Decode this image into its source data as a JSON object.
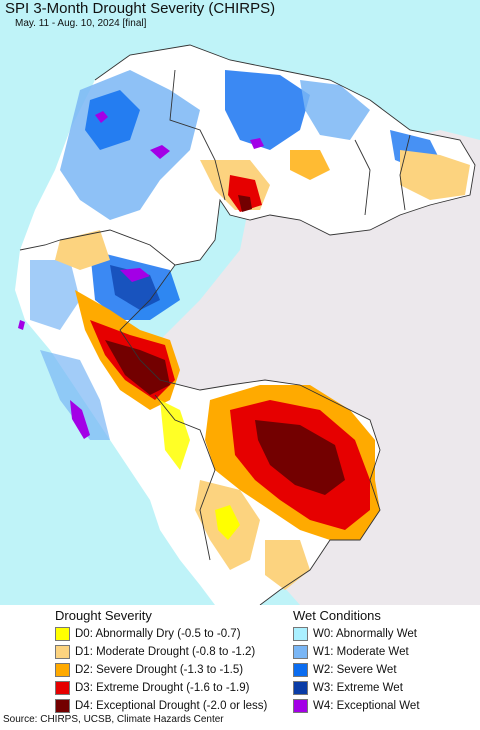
{
  "header": {
    "title": "SPI 3-Month Drought Severity (CHIRPS)",
    "subtitle": "May. 11 - Aug. 10, 2024 [final]"
  },
  "map": {
    "ocean_color": "#bff3f8",
    "other_land_color": "#ece8ec",
    "border_color": "#333333"
  },
  "legend": {
    "drought_title": "Drought Severity",
    "wet_title": "Wet Conditions",
    "drought": [
      {
        "label": "D0: Abnormally Dry (-0.5 to -0.7)",
        "color": "#ffff00"
      },
      {
        "label": "D1: Moderate Drought (-0.8 to -1.2)",
        "color": "#fcd37f"
      },
      {
        "label": "D2: Severe Drought (-1.3 to -1.5)",
        "color": "#ffaa00"
      },
      {
        "label": "D3: Extreme Drought (-1.6 to -1.9)",
        "color": "#e60000"
      },
      {
        "label": "D4: Exceptional Drought (-2.0 or less)",
        "color": "#730000"
      }
    ],
    "wet": [
      {
        "label": "W0: Abnormally Wet",
        "color": "#aaf0ff"
      },
      {
        "label": "W1: Moderate Wet",
        "color": "#7ab6f5"
      },
      {
        "label": "W2: Severe Wet",
        "color": "#0a6cf0"
      },
      {
        "label": "W3: Extreme Wet",
        "color": "#0a3ca6"
      },
      {
        "label": "W4: Exceptional Wet",
        "color": "#a300e6"
      }
    ]
  },
  "footer": {
    "source": "Source: CHIRPS, UCSB, Climate Hazards Center"
  }
}
